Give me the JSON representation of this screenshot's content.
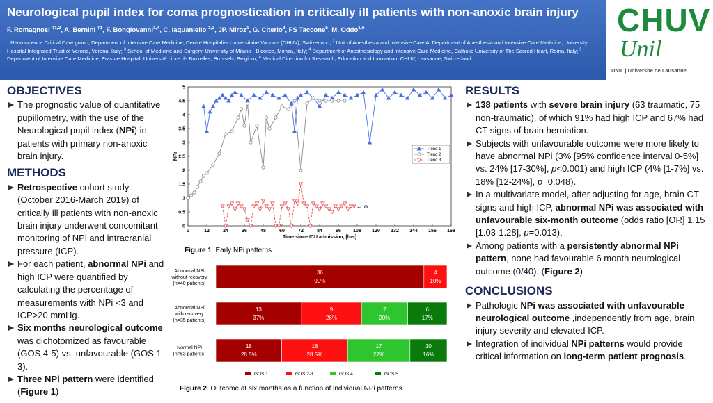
{
  "header": {
    "title": "Neurological pupil index for coma prognostication in critically ill patients with non-anoxic brain injury",
    "authors": [
      "F. Romagnosi ",
      {
        "sup": "†1,2"
      },
      ", A. Bernini ",
      {
        "sup": "†1"
      },
      ", F. Bongiovanni",
      {
        "sup": "1,4"
      },
      ", C. Iaquaniello ",
      {
        "sup": "1,3"
      },
      ", JP. Miroz",
      {
        "sup": "1"
      },
      ", G. Citerio",
      {
        "sup": "3"
      },
      ", FS Taccone",
      {
        "sup": "5"
      },
      ", M. Oddo",
      {
        "sup": "1,6"
      }
    ],
    "affiliations": [
      {
        "sup": "1"
      },
      " Neuroscience Critical Care group, Department of Intensive Care Medicine, Centre Hospitalier Universitaire Vaudois (CHUV), Switzerland; ",
      {
        "sup": "2"
      },
      " Unit of Anesthesia and Intensive Care A, Department of Anesthesia and Intensive Care Medicine, University Hospital Integrated Trust of Verona, Verona, Italy; ",
      {
        "sup": "3"
      },
      " School of Medicine and Surgery, University of Milano - Bicocca, Monza, Italy; ",
      {
        "sup": "4"
      },
      " Department of Anesthesiology and Intensive Care Medicine, Catholic University of The Sacred Heart, Roma, Italy; ",
      {
        "sup": "5"
      },
      " Department of Intensive Care Medicine, Erasme Hospital, Université Libre de Bruxelles, Brussels, Belgium; ",
      {
        "sup": "6"
      },
      " Medical Direction for Research, Education and Innovation, CHUV, Lausanne, Switzerland."
    ]
  },
  "logo": {
    "top": "CHUV",
    "script": "Unil",
    "caption": "UNIL | Université de Lausanne"
  },
  "objectives": {
    "heading": "OBJECTIVES",
    "bullets": [
      [
        "The prognostic value of quantitative pupillometry, with the use of the Neurological pupil index (",
        {
          "b": "NPi"
        },
        ") in patients with primary non-anoxic brain injury."
      ]
    ]
  },
  "methods": {
    "heading": "METHODS",
    "bullets": [
      [
        {
          "b": "Retrospective"
        },
        " cohort study (October 2016-March 2019) of critically ill patients with non-anoxic brain injury underwent concomitant monitoring of NPi and intracranial pressure (ICP)."
      ],
      [
        "For each patient, ",
        {
          "b": "abnormal NPi"
        },
        " and high ICP were quantified by calculating the percentage of measurements with NPi <3 and ICP>20 mmHg."
      ],
      [
        {
          "b": "Six months neurological outcome"
        },
        " was dichotomized as favourable (GOS 4-5) vs. unfavourable (GOS 1-3)."
      ],
      [
        {
          "b": "Three NPi pattern"
        },
        " were identified (",
        {
          "b": "Figure 1"
        },
        ")"
      ]
    ]
  },
  "results": {
    "heading": "RESULTS",
    "bullets": [
      [
        {
          "b": "138 patients"
        },
        " with  ",
        {
          "b": "severe brain injury"
        },
        " (63 traumatic, 75 non-traumatic), of which 91% had high ICP and 67% had CT signs of brain herniation."
      ],
      [
        "Subjects with unfavourable outcome were more likely to have abnormal NPi (3% [95% confidence interval 0-5%] vs. 24% [17-30%], ",
        {
          "i": "p"
        },
        "<0.001) and high ICP (4% [1-7%] vs. 18% [12-24%], ",
        {
          "i": "p"
        },
        "=0.048)."
      ],
      [
        "In a multivariate model, after adjusting for age, brain CT signs and high ICP,  ",
        {
          "b": "abnormal NPi was associated with unfavourable six-month outcome"
        },
        " (odds ratio [OR] 1.15 [1.03-1.28], ",
        {
          "i": "p"
        },
        "=0.013)."
      ],
      [
        "Among patients with a ",
        {
          "b": "persistently abnormal NPi pattern"
        },
        ",  none had favourable 6 month neurological outcome (0/40). (",
        {
          "b": "Figure 2"
        },
        ")"
      ]
    ]
  },
  "conclusions": {
    "heading": "CONCLUSIONS",
    "bullets": [
      [
        "Pathologic ",
        {
          "b": "NPi was associated with unfavourable neurological outcome"
        },
        " ,independently from age, brain injury severity and elevated ICP."
      ],
      [
        "Integration of individual ",
        {
          "b": "NPi patterns"
        },
        " would provide critical information on ",
        {
          "b": "long-term patient prognosis"
        },
        "."
      ]
    ]
  },
  "figure_captions": [
    [
      {
        "b": "Figure 1"
      },
      ". Early NPi patterns."
    ],
    [
      {
        "b": "Figure 2"
      },
      ". Outcome at six months as a function of individual NPi patterns."
    ]
  ],
  "chart_data": [
    {
      "type": "line",
      "xlabel": "Time since ICU admission, [hrs]",
      "ylabel": "NPi",
      "xlim": [
        0,
        168
      ],
      "xticks": [
        0,
        12,
        24,
        36,
        48,
        60,
        72,
        84,
        96,
        108,
        120,
        132,
        144,
        156,
        168
      ],
      "ylim": [
        0,
        5
      ],
      "yticks": [
        0,
        0.5,
        1,
        1.5,
        2,
        2.5,
        3,
        3.5,
        4,
        4.5,
        5
      ],
      "legend": "right",
      "annotations": [
        {
          "text": "← ɸ"
        }
      ],
      "series": [
        {
          "name": "Trend 1",
          "color": "#4a6fe3",
          "marker": "triangle-up",
          "dash": false,
          "x": [
            10,
            12,
            14,
            16,
            18,
            20,
            22,
            24,
            26,
            28,
            30,
            34,
            38,
            42,
            46,
            50,
            54,
            58,
            62,
            66,
            68,
            70,
            72,
            76,
            80,
            84,
            88,
            92,
            96,
            100,
            104,
            108,
            112,
            116,
            120,
            124,
            128,
            132,
            136,
            140,
            144,
            148,
            152,
            156,
            160,
            164,
            168
          ],
          "values": [
            4.3,
            3.4,
            4.1,
            4.3,
            4.5,
            4.6,
            4.7,
            4.6,
            4.5,
            4.7,
            4.8,
            4.7,
            4.5,
            4.7,
            4.6,
            4.8,
            4.7,
            4.6,
            4.7,
            4.4,
            3.4,
            4.6,
            4.7,
            4.8,
            4.6,
            4.3,
            4.7,
            4.6,
            4.8,
            4.7,
            4.6,
            4.7,
            4.8,
            3.0,
            4.7,
            4.9,
            4.6,
            4.8,
            4.7,
            4.6,
            4.9,
            4.7,
            4.8,
            4.6,
            4.9,
            4.6,
            4.7
          ]
        },
        {
          "name": "Trend 2",
          "color": "#8a8a8a",
          "marker": "circle",
          "dash": false,
          "x": [
            0,
            2,
            4,
            6,
            8,
            10,
            12,
            16,
            20,
            24,
            28,
            32,
            34,
            36,
            38,
            40,
            44,
            48,
            50,
            52,
            56,
            60,
            64,
            68,
            72,
            76,
            80,
            84,
            88,
            92,
            96,
            100
          ],
          "values": [
            1.0,
            1.1,
            1.2,
            1.4,
            1.6,
            1.8,
            1.9,
            2.2,
            2.6,
            3.3,
            3.4,
            3.9,
            4.2,
            3.6,
            4.4,
            3.0,
            3.6,
            2.1,
            3.9,
            3.5,
            3.9,
            4.3,
            4.2,
            4.5,
            2.0,
            4.4,
            4.6,
            4.5,
            4.5,
            4.5,
            4.5,
            4.5
          ]
        },
        {
          "name": "Trend 3",
          "color": "#e8474a",
          "marker": "triangle-down",
          "dash": true,
          "x": [
            22,
            24,
            26,
            28,
            30,
            32,
            34,
            36,
            38,
            40,
            42,
            44,
            46,
            48,
            50,
            52,
            54,
            56,
            58,
            60,
            62,
            64,
            66,
            68,
            70,
            72,
            74,
            76,
            78,
            80,
            82,
            84,
            86,
            88,
            90,
            92,
            94,
            96,
            98,
            100,
            102,
            104,
            106
          ],
          "values": [
            0.7,
            0.0,
            0.7,
            0.8,
            0.6,
            0.8,
            0.7,
            0.6,
            0.2,
            0.0,
            0.7,
            0.8,
            0.6,
            0.9,
            0.7,
            0.6,
            0.8,
            0.0,
            0.0,
            0.7,
            0.8,
            0.6,
            0.0,
            0.9,
            0.8,
            1.5,
            0.8,
            0.7,
            0.0,
            0.8,
            0.7,
            0.6,
            0.8,
            0.7,
            0.6,
            0.5,
            0.7,
            0.6,
            0.7,
            0.8,
            0.6,
            0.7,
            0.7
          ]
        }
      ]
    },
    {
      "type": "bar",
      "orientation": "horizontal",
      "stacked": true,
      "legend": "bottom",
      "xlim": [
        0,
        100
      ],
      "categories": [
        [
          "Abnormal NPi",
          "without recovery",
          "(n=40 patients)"
        ],
        [
          "Abnormal NPi",
          "with recovery",
          "(n=35 patients)"
        ],
        [
          "Normal NPi",
          "(n=63 patients)"
        ]
      ],
      "series": [
        {
          "name": "GOS 1",
          "color": "#a50000",
          "values": [
            90,
            37,
            28.5
          ],
          "counts": [
            36,
            13,
            18
          ],
          "value_labels": [
            "90%",
            "37%",
            "28.5%"
          ]
        },
        {
          "name": "GOS 2-3",
          "color": "#ff1010",
          "values": [
            10,
            26,
            28.5
          ],
          "counts": [
            4,
            9,
            18
          ],
          "value_labels": [
            "10%",
            "26%",
            "28.5%"
          ]
        },
        {
          "name": "GOS 4",
          "color": "#2ec52e",
          "values": [
            0,
            20,
            27
          ],
          "counts": [
            null,
            7,
            17
          ],
          "value_labels": [
            null,
            "20%",
            "27%"
          ]
        },
        {
          "name": "GOS 5",
          "color": "#0a7a0a",
          "values": [
            0,
            17,
            16
          ],
          "counts": [
            null,
            6,
            10
          ],
          "value_labels": [
            null,
            "17%",
            "16%"
          ]
        }
      ]
    }
  ]
}
